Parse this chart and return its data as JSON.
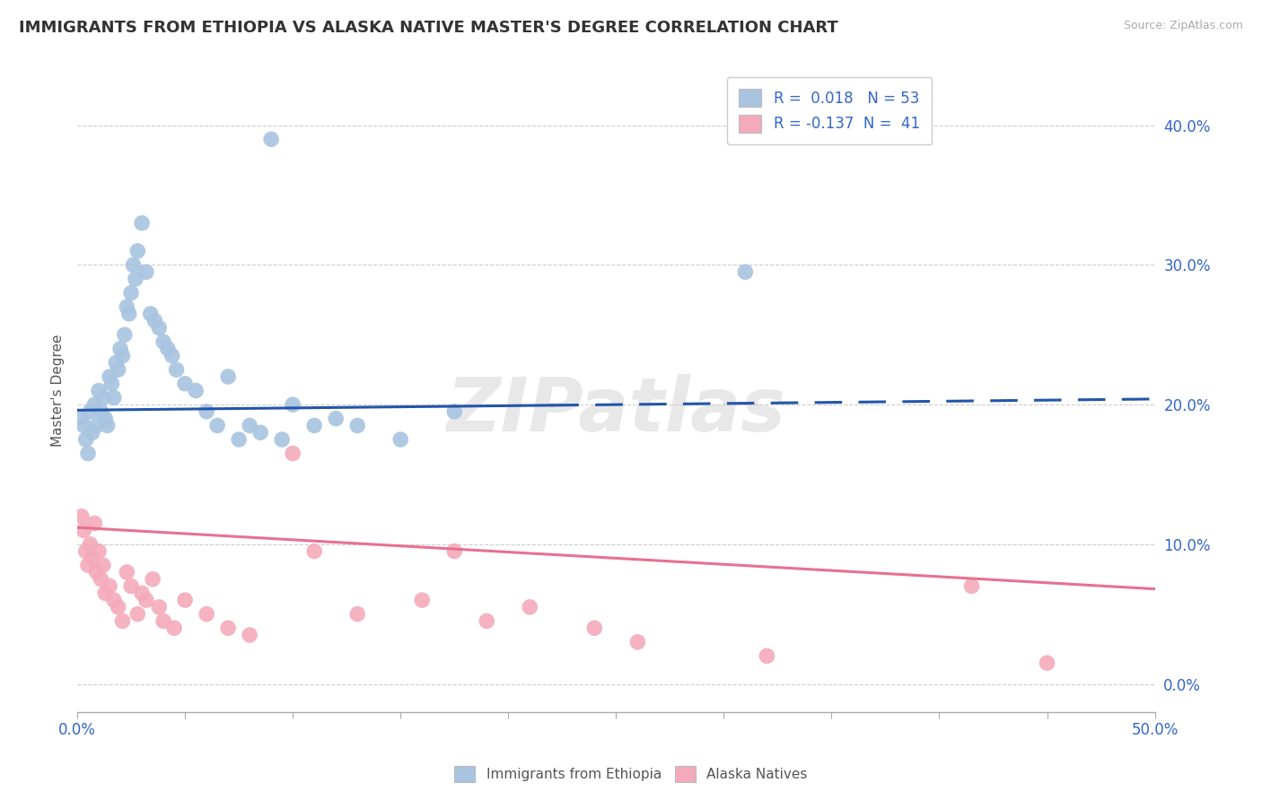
{
  "title": "IMMIGRANTS FROM ETHIOPIA VS ALASKA NATIVE MASTER'S DEGREE CORRELATION CHART",
  "source": "Source: ZipAtlas.com",
  "ylabel": "Master's Degree",
  "xlim": [
    0.0,
    0.5
  ],
  "ylim": [
    -0.02,
    0.44
  ],
  "xticks": [
    0.0,
    0.05,
    0.1,
    0.15,
    0.2,
    0.25,
    0.3,
    0.35,
    0.4,
    0.45,
    0.5
  ],
  "yticks": [
    0.0,
    0.1,
    0.2,
    0.3,
    0.4
  ],
  "ytick_labels": [
    "0.0%",
    "10.0%",
    "20.0%",
    "30.0%",
    "40.0%"
  ],
  "blue_R": 0.018,
  "blue_N": 53,
  "pink_R": -0.137,
  "pink_N": 41,
  "watermark": "ZIPatlas",
  "blue_color": "#A8C4E0",
  "pink_color": "#F4AABB",
  "blue_line_color": "#2255AA",
  "pink_line_color": "#E87090",
  "blue_scatter_x": [
    0.002,
    0.003,
    0.004,
    0.005,
    0.006,
    0.007,
    0.008,
    0.009,
    0.01,
    0.011,
    0.012,
    0.013,
    0.014,
    0.015,
    0.016,
    0.017,
    0.018,
    0.019,
    0.02,
    0.021,
    0.022,
    0.023,
    0.024,
    0.025,
    0.026,
    0.027,
    0.028,
    0.03,
    0.032,
    0.034,
    0.036,
    0.038,
    0.04,
    0.042,
    0.044,
    0.046,
    0.05,
    0.055,
    0.06,
    0.065,
    0.07,
    0.075,
    0.08,
    0.085,
    0.09,
    0.095,
    0.1,
    0.11,
    0.12,
    0.13,
    0.15,
    0.175,
    0.31
  ],
  "blue_scatter_y": [
    0.19,
    0.185,
    0.175,
    0.165,
    0.195,
    0.18,
    0.2,
    0.185,
    0.21,
    0.195,
    0.205,
    0.19,
    0.185,
    0.22,
    0.215,
    0.205,
    0.23,
    0.225,
    0.24,
    0.235,
    0.25,
    0.27,
    0.265,
    0.28,
    0.3,
    0.29,
    0.31,
    0.33,
    0.295,
    0.265,
    0.26,
    0.255,
    0.245,
    0.24,
    0.235,
    0.225,
    0.215,
    0.21,
    0.195,
    0.185,
    0.22,
    0.175,
    0.185,
    0.18,
    0.39,
    0.175,
    0.2,
    0.185,
    0.19,
    0.185,
    0.175,
    0.195,
    0.295
  ],
  "pink_scatter_x": [
    0.002,
    0.003,
    0.004,
    0.005,
    0.006,
    0.007,
    0.008,
    0.009,
    0.01,
    0.011,
    0.012,
    0.013,
    0.015,
    0.017,
    0.019,
    0.021,
    0.023,
    0.025,
    0.028,
    0.03,
    0.032,
    0.035,
    0.038,
    0.04,
    0.045,
    0.05,
    0.06,
    0.07,
    0.08,
    0.1,
    0.11,
    0.13,
    0.16,
    0.175,
    0.19,
    0.21,
    0.24,
    0.26,
    0.32,
    0.415,
    0.45
  ],
  "pink_scatter_y": [
    0.12,
    0.11,
    0.095,
    0.085,
    0.1,
    0.09,
    0.115,
    0.08,
    0.095,
    0.075,
    0.085,
    0.065,
    0.07,
    0.06,
    0.055,
    0.045,
    0.08,
    0.07,
    0.05,
    0.065,
    0.06,
    0.075,
    0.055,
    0.045,
    0.04,
    0.06,
    0.05,
    0.04,
    0.035,
    0.165,
    0.095,
    0.05,
    0.06,
    0.095,
    0.045,
    0.055,
    0.04,
    0.03,
    0.02,
    0.07,
    0.015
  ]
}
